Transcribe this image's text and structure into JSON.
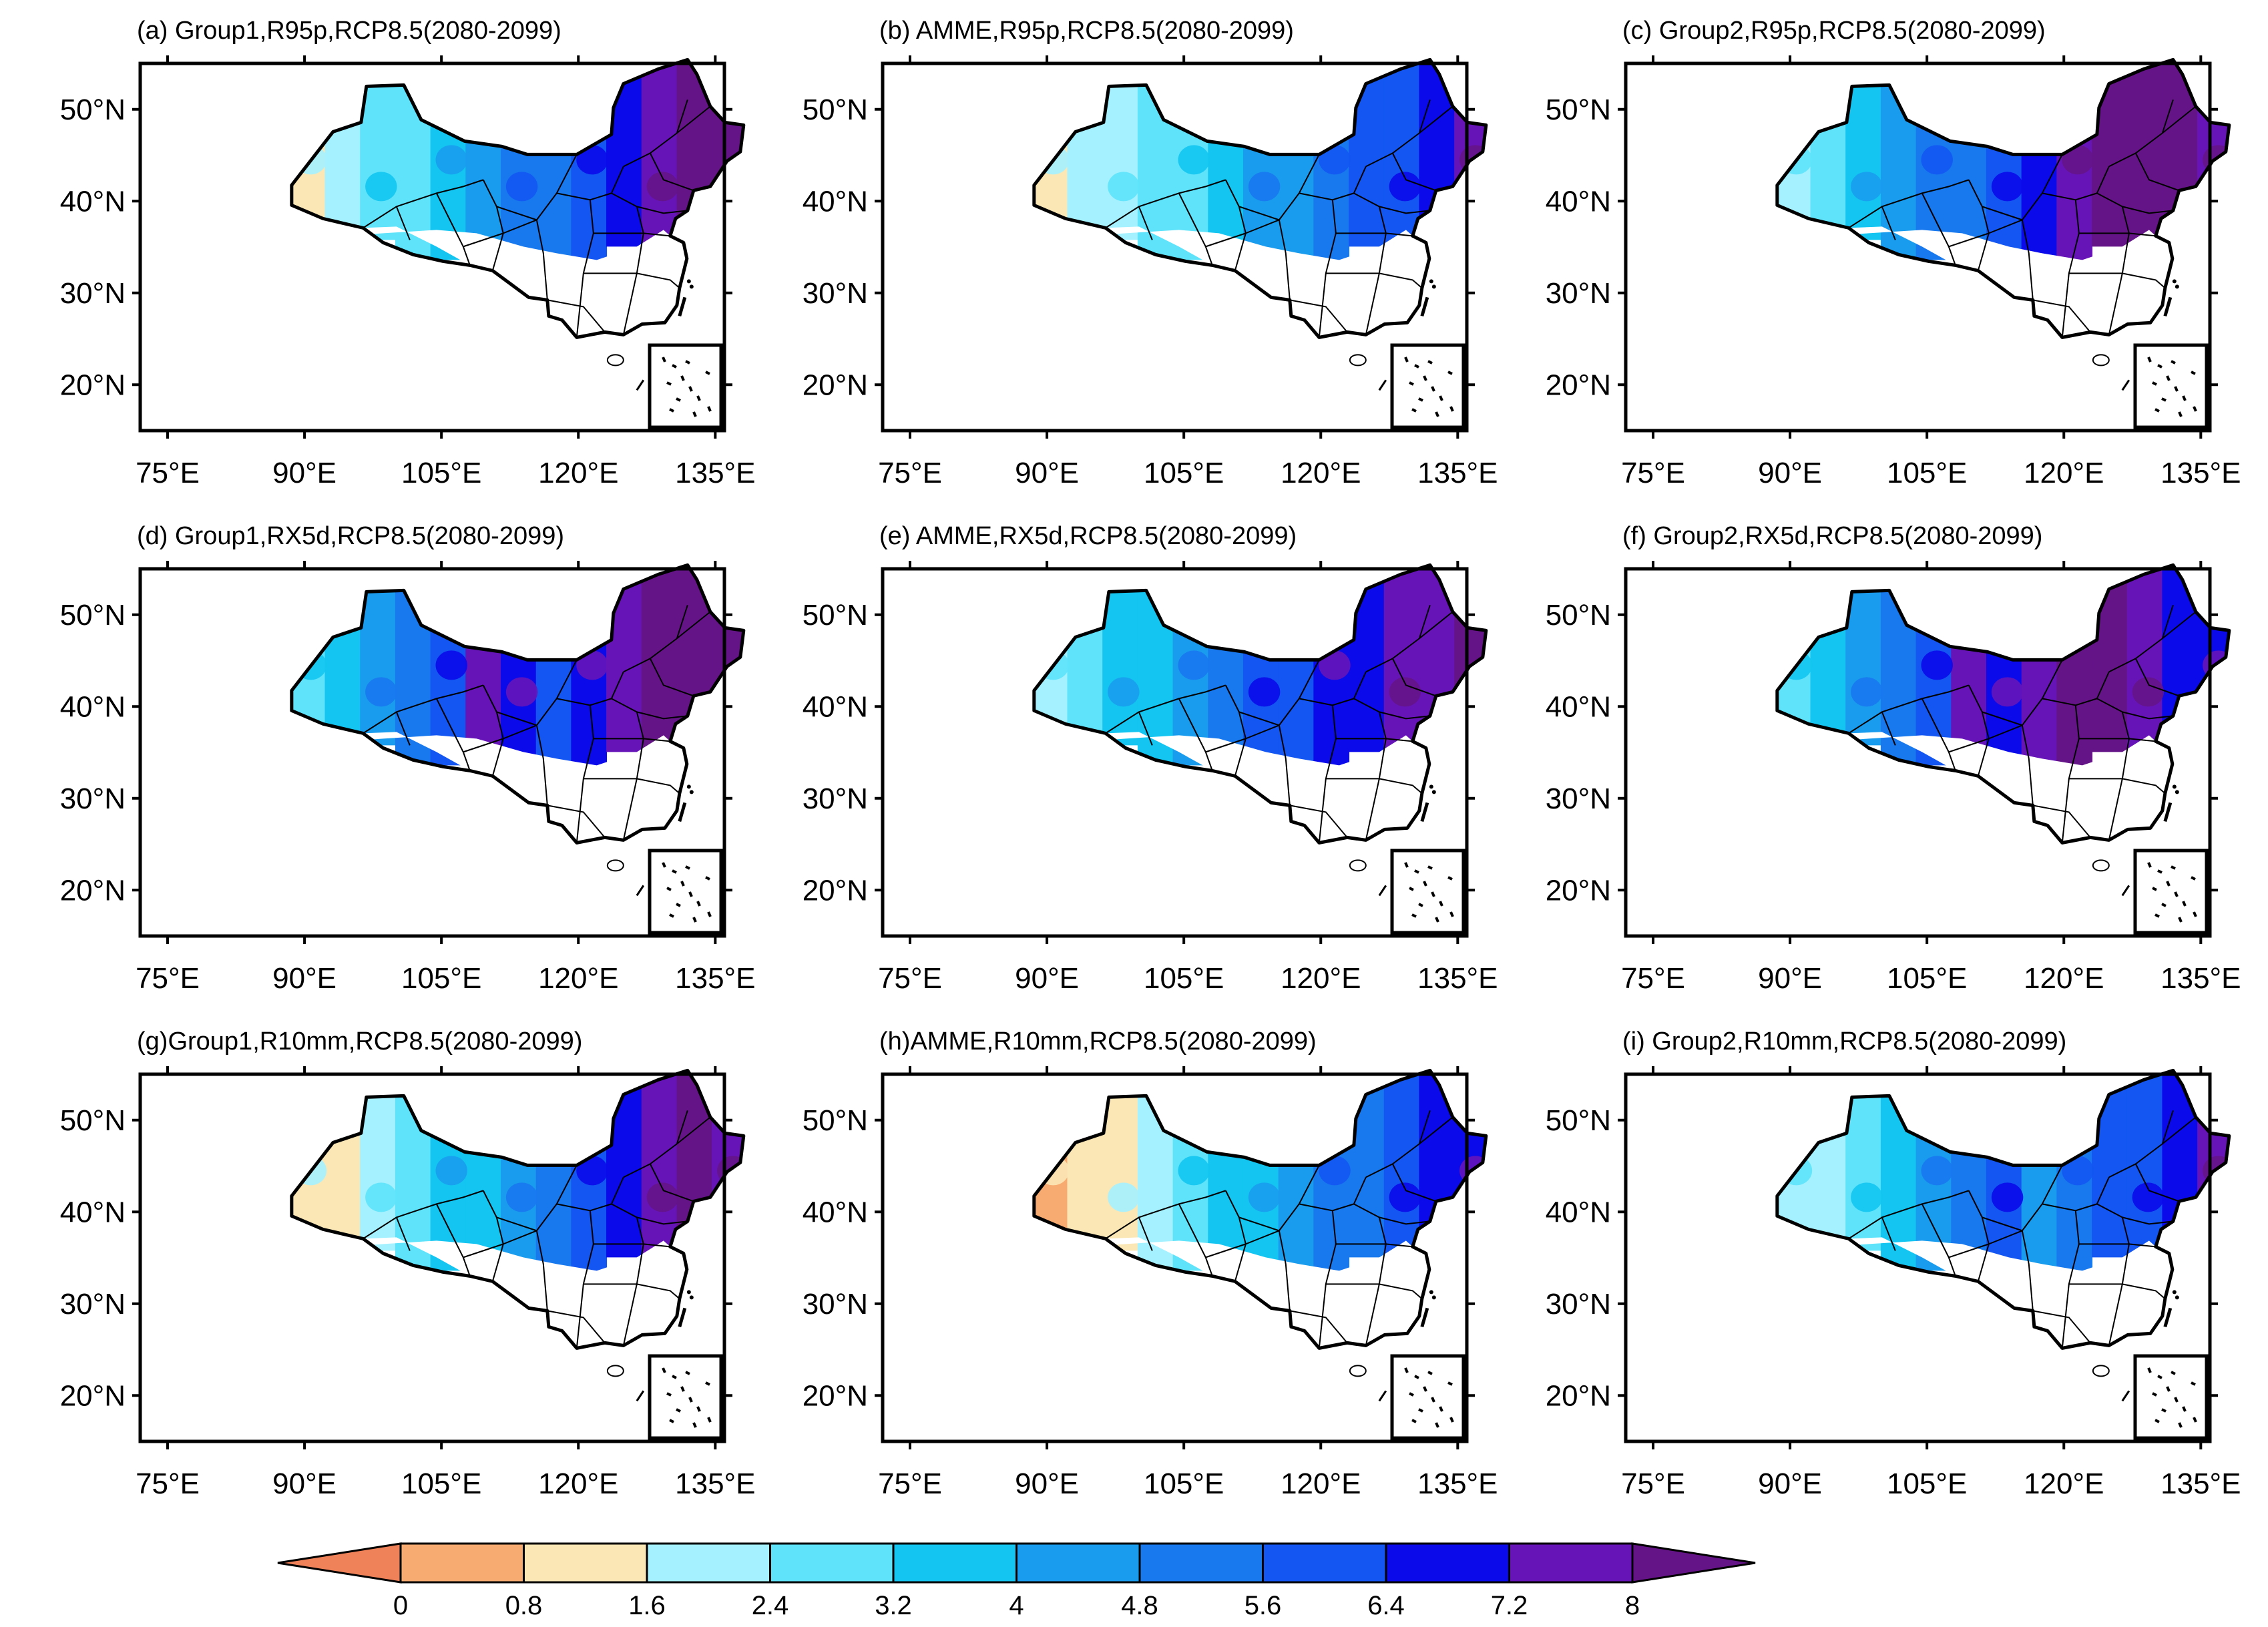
{
  "panels": [
    {
      "title": "(a) Group1,R95p,RCP8.5(2080-2099)",
      "pattern": [
        1,
        2,
        3,
        3,
        4,
        5,
        6,
        6,
        7,
        8,
        9,
        10,
        10
      ]
    },
    {
      "title": "(b)  AMME,R95p,RCP8.5(2080-2099)",
      "pattern": [
        1,
        2,
        2,
        3,
        3,
        4,
        5,
        5,
        6,
        7,
        7,
        8,
        9
      ]
    },
    {
      "title": "(c)  Group2,R95p,RCP8.5(2080-2099)",
      "pattern": [
        2,
        3,
        4,
        5,
        6,
        6,
        7,
        8,
        9,
        10,
        10,
        10,
        9
      ]
    },
    {
      "title": "(d) Group1,RX5d,RCP8.5(2080-2099)",
      "pattern": [
        3,
        4,
        5,
        6,
        7,
        9,
        8,
        7,
        8,
        9,
        10,
        10,
        10
      ]
    },
    {
      "title": "(e)  AMME,RX5d,RCP8.5(2080-2099)",
      "pattern": [
        2,
        3,
        4,
        4,
        5,
        6,
        7,
        7,
        8,
        8,
        9,
        9,
        10
      ]
    },
    {
      "title": "(f)  Group2,RX5d,RCP8.5(2080-2099)",
      "pattern": [
        3,
        4,
        5,
        6,
        7,
        9,
        8,
        9,
        10,
        10,
        9,
        8,
        8
      ]
    },
    {
      "title": "(g)Group1,R10mm,RCP8.5(2080-2099)",
      "pattern": [
        1,
        1,
        2,
        3,
        4,
        4,
        5,
        6,
        7,
        8,
        9,
        10,
        9
      ]
    },
    {
      "title": "(h)AMME,R10mm,RCP8.5(2080-2099)",
      "pattern": [
        0,
        1,
        1,
        2,
        3,
        4,
        4,
        5,
        6,
        6,
        7,
        8,
        8
      ]
    },
    {
      "title": "(i) Group2,R10mm,RCP8.5(2080-2099)",
      "pattern": [
        2,
        2,
        3,
        4,
        5,
        6,
        7,
        5,
        6,
        7,
        7,
        8,
        9
      ]
    }
  ],
  "axes": {
    "lon_labels": [
      "75°E",
      "90°E",
      "105°E",
      "120°E",
      "135°E"
    ],
    "lat_labels": [
      "50°N",
      "40°N",
      "30°N",
      "20°N"
    ],
    "lon_values": [
      75,
      90,
      105,
      120,
      135
    ],
    "lat_values": [
      50,
      40,
      30,
      20
    ],
    "lon_range": [
      72,
      136
    ],
    "lat_range": [
      15,
      55
    ]
  },
  "colorbar": {
    "labels": [
      "0",
      "0.8",
      "1.6",
      "2.4",
      "3.2",
      "4",
      "4.8",
      "5.6",
      "6.4",
      "7.2",
      "8"
    ],
    "colors": [
      "#f0825a",
      "#f8ab70",
      "#fbe7b6",
      "#a5f1ff",
      "#5ee3fb",
      "#13c5f0",
      "#1a9cee",
      "#1878ee",
      "#1356f2",
      "#0a0aea",
      "#6614b8",
      "#651488"
    ]
  }
}
